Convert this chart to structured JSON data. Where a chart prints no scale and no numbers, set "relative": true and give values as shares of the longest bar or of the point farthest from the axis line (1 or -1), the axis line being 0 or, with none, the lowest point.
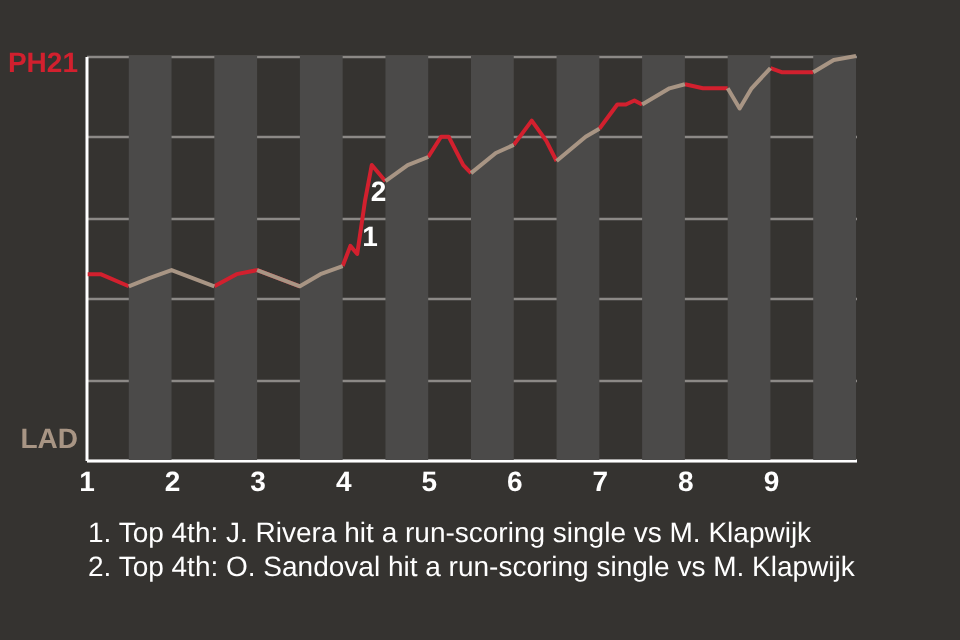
{
  "chart_data": {
    "type": "line",
    "relative": true,
    "grid": "y",
    "x": [
      1.02,
      1.17,
      1.5,
      1.74,
      2.0,
      2.5,
      2.76,
      3.0,
      3.5,
      3.74,
      4.0,
      4.09,
      4.17,
      4.26,
      4.34,
      4.5,
      4.76,
      5.0,
      5.15,
      5.24,
      5.41,
      5.5,
      5.79,
      6.0,
      6.21,
      6.38,
      6.5,
      6.84,
      7.0,
      7.21,
      7.31,
      7.41,
      7.5,
      7.82,
      8.0,
      8.21,
      8.5,
      8.64,
      8.78,
      9.0,
      9.13,
      9.5,
      9.74,
      10.0
    ],
    "series": [
      {
        "color": "#d2202e",
        "values": [
          0.46,
          0.46,
          0.43,
          null,
          null,
          0.43,
          0.46,
          0.47,
          0.43,
          null,
          0.48,
          0.53,
          0.51,
          0.64,
          0.73,
          0.69,
          null,
          0.75,
          0.8,
          0.8,
          0.73,
          0.71,
          null,
          0.78,
          0.84,
          0.79,
          0.74,
          null,
          0.82,
          0.88,
          0.88,
          0.89,
          0.88,
          null,
          0.93,
          0.92,
          0.92,
          null,
          null,
          0.97,
          0.96,
          0.96,
          null,
          null
        ]
      },
      {
        "color": "#a89584",
        "values": [
          null,
          null,
          0.43,
          0.45,
          0.47,
          0.43,
          null,
          0.47,
          0.43,
          0.46,
          0.48,
          null,
          null,
          null,
          null,
          0.69,
          0.73,
          0.75,
          null,
          null,
          null,
          0.71,
          0.76,
          0.78,
          null,
          null,
          0.74,
          0.8,
          0.82,
          null,
          null,
          null,
          0.88,
          0.92,
          0.93,
          null,
          0.92,
          0.87,
          0.92,
          0.97,
          null,
          0.96,
          0.99,
          1.0
        ]
      }
    ],
    "xlim": [
      1,
      10
    ],
    "xticks": [
      1,
      2,
      3,
      4,
      5,
      6,
      7,
      8,
      9
    ],
    "bands": [
      {
        "axis": "x",
        "from": 1.5,
        "to": 2,
        "color": "#4b4a49"
      },
      {
        "axis": "x",
        "from": 2.5,
        "to": 3,
        "color": "#4b4a49"
      },
      {
        "axis": "x",
        "from": 3.5,
        "to": 4,
        "color": "#4b4a49"
      },
      {
        "axis": "x",
        "from": 4.5,
        "to": 5,
        "color": "#4b4a49"
      },
      {
        "axis": "x",
        "from": 5.5,
        "to": 6,
        "color": "#4b4a49"
      },
      {
        "axis": "x",
        "from": 6.5,
        "to": 7,
        "color": "#4b4a49"
      },
      {
        "axis": "x",
        "from": 7.5,
        "to": 8,
        "color": "#4b4a49"
      },
      {
        "axis": "x",
        "from": 8.5,
        "to": 9,
        "color": "#4b4a49"
      },
      {
        "axis": "x",
        "from": 9.5,
        "to": 10,
        "color": "#4b4a49"
      }
    ],
    "annotations": [
      "PH21",
      "LAD",
      {
        "text": "1",
        "x": 4.32,
        "y": 0.55
      },
      {
        "text": "2",
        "x": 4.42,
        "y": 0.66
      },
      "1. Top 4th: J. Rivera hit a run-scoring single vs M. Klapwijk",
      "2. Top 4th: O. Sandoval hit a run-scoring single vs M. Klapwijk"
    ]
  }
}
